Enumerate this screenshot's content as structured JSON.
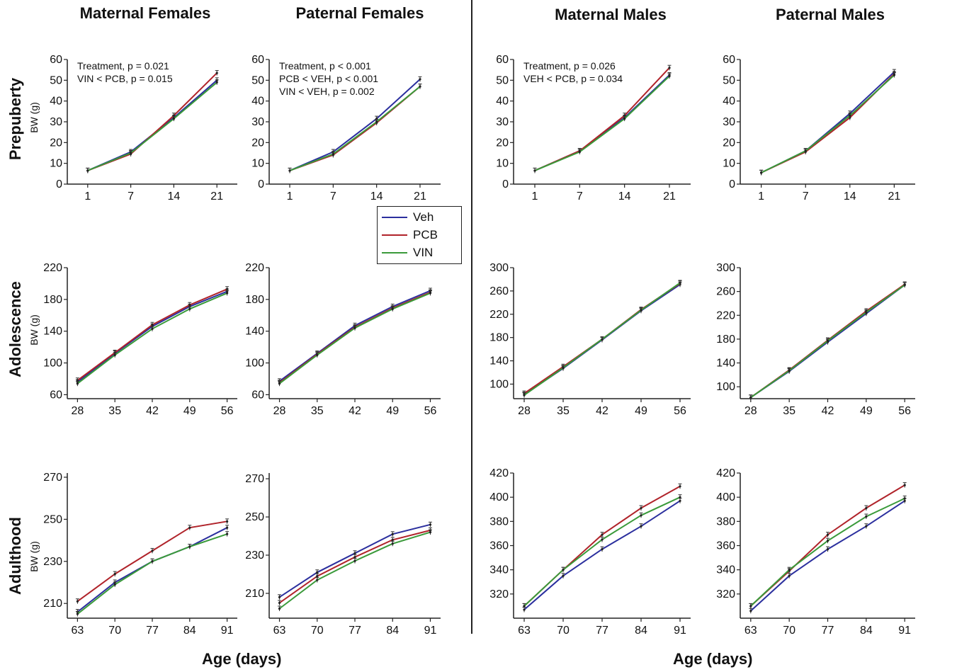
{
  "column_titles": [
    "Maternal Females",
    "Paternal Females",
    "Maternal Males",
    "Paternal Males"
  ],
  "row_titles": [
    "Prepuberty",
    "Adolescence",
    "Adulthood"
  ],
  "ylabel": "BW (g)",
  "xlabel": "Age (days)",
  "legend": {
    "items": [
      {
        "label": "Veh",
        "color": "#2b2f9e"
      },
      {
        "label": "PCB",
        "color": "#b0232a"
      },
      {
        "label": "VIN",
        "color": "#3a9a3a"
      }
    ]
  },
  "colors": {
    "Veh": "#2b2f9e",
    "PCB": "#b0232a",
    "VIN": "#3a9a3a"
  },
  "chart_data": [
    {
      "type": "line",
      "panel": "Maternal Females / Prepuberty",
      "x": [
        1,
        7,
        14,
        21
      ],
      "ylim": [
        0,
        60
      ],
      "yticks": [
        0,
        10,
        20,
        30,
        40,
        50,
        60
      ],
      "annotation": [
        "Treatment, p = 0.021",
        "VIN < PCB, p = 0.015"
      ],
      "series": [
        {
          "name": "Veh",
          "values": [
            6.5,
            15.5,
            32,
            50
          ]
        },
        {
          "name": "PCB",
          "values": [
            6.5,
            14.5,
            33,
            53.5
          ]
        },
        {
          "name": "VIN",
          "values": [
            6.5,
            15,
            31.5,
            49
          ]
        }
      ]
    },
    {
      "type": "line",
      "panel": "Paternal Females / Prepuberty",
      "x": [
        1,
        7,
        14,
        21
      ],
      "ylim": [
        0,
        60
      ],
      "yticks": [
        0,
        10,
        20,
        30,
        40,
        50,
        60
      ],
      "annotation": [
        "Treatment, p < 0.001",
        "PCB < VEH, p < 0.001",
        "VIN < VEH, p = 0.002"
      ],
      "series": [
        {
          "name": "Veh",
          "values": [
            6.5,
            15.5,
            31.5,
            50.5
          ]
        },
        {
          "name": "PCB",
          "values": [
            6.5,
            14,
            29.5,
            47
          ]
        },
        {
          "name": "VIN",
          "values": [
            6.5,
            14.5,
            30,
            47
          ]
        }
      ]
    },
    {
      "type": "line",
      "panel": "Maternal Males / Prepuberty",
      "x": [
        1,
        7,
        14,
        21
      ],
      "ylim": [
        0,
        60
      ],
      "yticks": [
        0,
        10,
        20,
        30,
        40,
        50,
        60
      ],
      "annotation": [
        "Treatment, p = 0.026",
        "VEH < PCB, p = 0.034"
      ],
      "series": [
        {
          "name": "Veh",
          "values": [
            6.5,
            16,
            32,
            52.5
          ]
        },
        {
          "name": "PCB",
          "values": [
            6.5,
            16,
            33,
            56
          ]
        },
        {
          "name": "VIN",
          "values": [
            6.5,
            15.5,
            31.5,
            52
          ]
        }
      ]
    },
    {
      "type": "line",
      "panel": "Paternal Males / Prepuberty",
      "x": [
        1,
        7,
        14,
        21
      ],
      "ylim": [
        0,
        60
      ],
      "yticks": [
        0,
        10,
        20,
        30,
        40,
        50,
        60
      ],
      "annotation": [],
      "series": [
        {
          "name": "Veh",
          "values": [
            5.5,
            16,
            34,
            54
          ]
        },
        {
          "name": "PCB",
          "values": [
            5.5,
            15.5,
            32,
            53
          ]
        },
        {
          "name": "VIN",
          "values": [
            5.5,
            16,
            33,
            52.5
          ]
        }
      ]
    },
    {
      "type": "line",
      "panel": "Maternal Females / Adolescence",
      "x": [
        28,
        35,
        42,
        49,
        56
      ],
      "ylim": [
        55,
        220
      ],
      "yticks": [
        60,
        100,
        140,
        180,
        220
      ],
      "annotation": [],
      "series": [
        {
          "name": "Veh",
          "values": [
            76,
            112,
            146,
            171,
            190
          ]
        },
        {
          "name": "PCB",
          "values": [
            78,
            113,
            148,
            173,
            193
          ]
        },
        {
          "name": "VIN",
          "values": [
            74,
            110,
            143,
            168,
            188
          ]
        }
      ]
    },
    {
      "type": "line",
      "panel": "Paternal Females / Adolescence",
      "x": [
        28,
        35,
        42,
        49,
        56
      ],
      "ylim": [
        55,
        220
      ],
      "yticks": [
        60,
        100,
        140,
        180,
        220
      ],
      "annotation": [],
      "series": [
        {
          "name": "Veh",
          "values": [
            77,
            112,
            147,
            171,
            191
          ]
        },
        {
          "name": "PCB",
          "values": [
            75,
            111,
            145,
            169,
            189
          ]
        },
        {
          "name": "VIN",
          "values": [
            74,
            110,
            144,
            168,
            188
          ]
        }
      ]
    },
    {
      "type": "line",
      "panel": "Maternal Males / Adolescence",
      "x": [
        28,
        35,
        42,
        49,
        56
      ],
      "ylim": [
        75,
        300
      ],
      "yticks": [
        100,
        140,
        180,
        220,
        260,
        300
      ],
      "annotation": [],
      "series": [
        {
          "name": "Veh",
          "values": [
            82,
            127,
            176,
            226,
            271
          ]
        },
        {
          "name": "PCB",
          "values": [
            84,
            130,
            177,
            228,
            273
          ]
        },
        {
          "name": "VIN",
          "values": [
            81,
            128,
            177,
            227,
            274
          ]
        }
      ]
    },
    {
      "type": "line",
      "panel": "Paternal Males / Adolescence",
      "x": [
        28,
        35,
        42,
        49,
        56
      ],
      "ylim": [
        80,
        300
      ],
      "yticks": [
        100,
        140,
        180,
        220,
        260,
        300
      ],
      "annotation": [],
      "series": [
        {
          "name": "Veh",
          "values": [
            82,
            126,
            175,
            223,
            271
          ]
        },
        {
          "name": "PCB",
          "values": [
            82,
            128,
            178,
            227,
            272
          ]
        },
        {
          "name": "VIN",
          "values": [
            82,
            127,
            177,
            225,
            271
          ]
        }
      ]
    },
    {
      "type": "line",
      "panel": "Maternal Females / Adulthood",
      "x": [
        63,
        70,
        77,
        84,
        91
      ],
      "ylim": [
        203,
        272
      ],
      "yticks": [
        210,
        230,
        250,
        270
      ],
      "annotation": [],
      "series": [
        {
          "name": "Veh",
          "values": [
            206,
            220,
            230,
            237,
            246
          ]
        },
        {
          "name": "PCB",
          "values": [
            211,
            224,
            235,
            246,
            249
          ]
        },
        {
          "name": "VIN",
          "values": [
            205,
            219,
            230,
            237,
            243
          ]
        }
      ]
    },
    {
      "type": "line",
      "panel": "Paternal Females / Adulthood",
      "x": [
        63,
        70,
        77,
        84,
        91
      ],
      "ylim": [
        197,
        273
      ],
      "yticks": [
        210,
        230,
        250,
        270
      ],
      "annotation": [],
      "series": [
        {
          "name": "Veh",
          "values": [
            208,
            221,
            231,
            241,
            246
          ]
        },
        {
          "name": "PCB",
          "values": [
            205,
            219,
            229,
            238,
            243
          ]
        },
        {
          "name": "VIN",
          "values": [
            202,
            217,
            227,
            236,
            242
          ]
        }
      ]
    },
    {
      "type": "line",
      "panel": "Maternal Males / Adulthood",
      "x": [
        63,
        70,
        77,
        84,
        91
      ],
      "ylim": [
        300,
        420
      ],
      "yticks": [
        320,
        340,
        360,
        380,
        400,
        420
      ],
      "annotation": [],
      "series": [
        {
          "name": "Veh",
          "values": [
            307,
            335,
            357,
            376,
            397
          ]
        },
        {
          "name": "PCB",
          "values": [
            310,
            340,
            369,
            391,
            409
          ]
        },
        {
          "name": "VIN",
          "values": [
            310,
            340,
            365,
            385,
            400
          ]
        }
      ]
    },
    {
      "type": "line",
      "panel": "Paternal Males / Adulthood",
      "x": [
        63,
        70,
        77,
        84,
        91
      ],
      "ylim": [
        300,
        420
      ],
      "yticks": [
        320,
        340,
        360,
        380,
        400,
        420
      ],
      "annotation": [],
      "series": [
        {
          "name": "Veh",
          "values": [
            306,
            335,
            357,
            376,
            397
          ]
        },
        {
          "name": "PCB",
          "values": [
            310,
            339,
            369,
            391,
            410
          ]
        },
        {
          "name": "VIN",
          "values": [
            310,
            340,
            364,
            384,
            399
          ]
        }
      ]
    }
  ]
}
